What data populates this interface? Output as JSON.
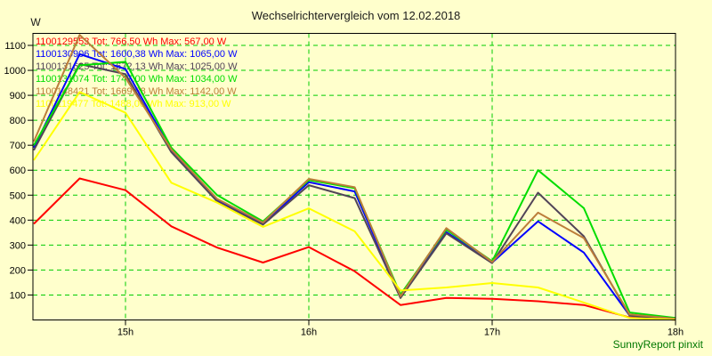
{
  "title": "Wechselrichtervergleich vom 12.02.2018",
  "y_axis_unit": "W",
  "footer": "SunnyReport pinxit",
  "colors": {
    "background": "#ffffcc",
    "grid": "#00cc00",
    "axis": "#000000",
    "footer": "#007700"
  },
  "chart_data": {
    "type": "line",
    "title": "Wechselrichtervergleich vom 12.02.2018",
    "xlabel": "",
    "ylabel": "W",
    "ylim": [
      0,
      1100
    ],
    "grid": true,
    "legend_position": "top-left",
    "y_ticks": [
      100,
      200,
      300,
      400,
      500,
      600,
      700,
      800,
      900,
      1000,
      1100
    ],
    "x_range": [
      14.5,
      18
    ],
    "x_grid_hours": [
      15,
      16,
      17
    ],
    "x_ticks": [
      {
        "label": "15h",
        "hour": 15
      },
      {
        "label": "16h",
        "hour": 16
      },
      {
        "label": "17h",
        "hour": 17
      },
      {
        "label": "18h",
        "hour": 18
      }
    ],
    "x_hours": [
      14.5,
      14.75,
      15.0,
      15.25,
      15.5,
      15.75,
      16.0,
      16.25,
      16.5,
      16.75,
      17.0,
      17.25,
      17.5,
      17.75,
      18.0
    ],
    "series": [
      {
        "id": "1100129553",
        "tot": "766,50 Wh",
        "max": "567,00 W",
        "legend": "1100129553 Tot: 766,50 Wh Max: 567,00 W",
        "color": "#ff0000",
        "values": [
          385,
          567,
          520,
          375,
          290,
          230,
          292,
          195,
          60,
          88,
          85,
          75,
          60,
          10,
          1
        ]
      },
      {
        "id": "1100130906",
        "tot": "1600,38 Wh",
        "max": "1065,00 W",
        "legend": "1100130906 Tot: 1600,38 Wh Max: 1065,00 W",
        "color": "#0000ff",
        "values": [
          690,
          1065,
          1005,
          680,
          480,
          387,
          552,
          515,
          92,
          352,
          230,
          395,
          270,
          18,
          4
        ]
      },
      {
        "id": "1100131625",
        "tot": "1672,13 Wh",
        "max": "1025,00 W",
        "legend": "1100131625 Tot: 1672,13 Wh Max: 1025,00 W",
        "color": "#514458",
        "values": [
          680,
          1025,
          985,
          672,
          475,
          382,
          540,
          488,
          88,
          347,
          228,
          510,
          335,
          17,
          4
        ]
      },
      {
        "id": "1100131074",
        "tot": "1747,00 Wh",
        "max": "1034,00 W",
        "legend": "1100131074 Tot: 1747,00 Wh Max: 1034,00 W",
        "color": "#00dd00",
        "values": [
          700,
          1020,
          1034,
          690,
          500,
          395,
          560,
          528,
          102,
          362,
          235,
          600,
          448,
          30,
          8
        ]
      },
      {
        "id": "1100148421",
        "tot": "1669,88 Wh",
        "max": "1142,00 W",
        "legend": "1100148421 Tot: 1669,88 Wh Max: 1142,00 W",
        "color": "#bc7d3a",
        "values": [
          715,
          1142,
          970,
          683,
          485,
          390,
          565,
          532,
          95,
          368,
          232,
          430,
          328,
          22,
          5
        ]
      },
      {
        "id": "1100119477",
        "tot": "1488,00 Wh",
        "max": "913,00 W",
        "legend": "1100119477 Tot: 1488,00 Wh Max: 913,00 W",
        "color": "#ffff00",
        "values": [
          640,
          913,
          830,
          550,
          470,
          373,
          447,
          355,
          118,
          130,
          148,
          130,
          70,
          8,
          1
        ]
      }
    ]
  }
}
